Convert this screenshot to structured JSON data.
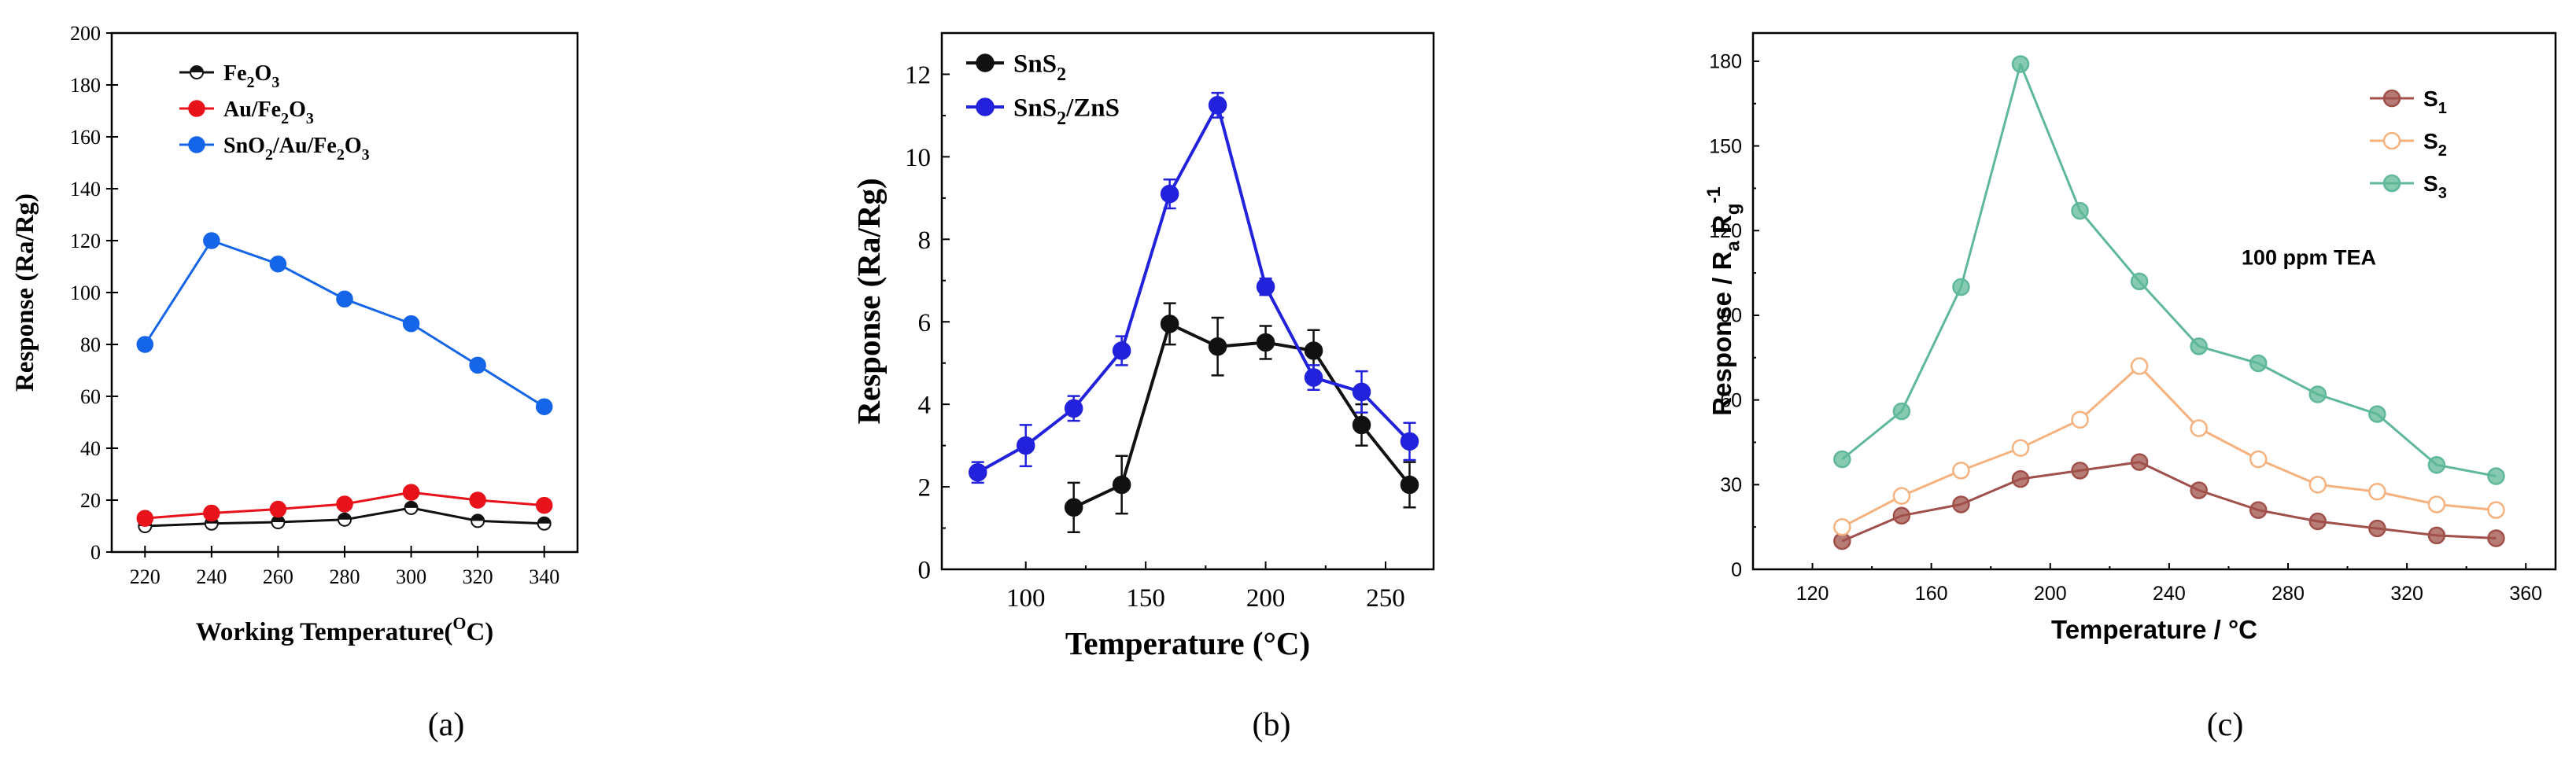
{
  "chart_data": [
    {
      "type": "line",
      "panel_label": "(a)",
      "title": "",
      "xlabel": "Working Temperature(°C)",
      "xlabel_main": "Working Temperature(",
      "xlabel_sup": "O",
      "xlabel_end": "C)",
      "ylabel": "Response (Ra/Rg)",
      "xlim": [
        210,
        350
      ],
      "ylim": [
        0,
        200
      ],
      "xticks": [
        220,
        240,
        260,
        280,
        300,
        320,
        340
      ],
      "yticks": [
        0,
        20,
        40,
        60,
        80,
        100,
        120,
        140,
        160,
        180,
        200
      ],
      "grid": false,
      "legend_position": "top-left",
      "x": [
        220,
        240,
        260,
        280,
        300,
        320,
        340
      ],
      "series": [
        {
          "name": "Fe2O3",
          "legend": [
            {
              "t": "Fe"
            },
            {
              "t": "2",
              "sub": true
            },
            {
              "t": "O"
            },
            {
              "t": "3",
              "sub": true
            }
          ],
          "color": "#111111",
          "marker": "half-open-circle",
          "values": [
            10,
            11,
            11.5,
            12.5,
            17,
            12,
            11
          ]
        },
        {
          "name": "Au/Fe2O3",
          "legend": [
            {
              "t": "Au/Fe"
            },
            {
              "t": "2",
              "sub": true
            },
            {
              "t": "O"
            },
            {
              "t": "3",
              "sub": true
            }
          ],
          "color": "#e8121b",
          "marker": "circle",
          "values": [
            13,
            15,
            16.5,
            18.5,
            23,
            20,
            18
          ]
        },
        {
          "name": "SnO2/Au/Fe2O3",
          "legend": [
            {
              "t": "SnO"
            },
            {
              "t": "2",
              "sub": true
            },
            {
              "t": "/Au/Fe"
            },
            {
              "t": "2",
              "sub": true
            },
            {
              "t": "O"
            },
            {
              "t": "3",
              "sub": true
            }
          ],
          "color": "#1565e8",
          "marker": "circle",
          "values": [
            80,
            120,
            111,
            97.5,
            88,
            72,
            56
          ]
        }
      ]
    },
    {
      "type": "line",
      "panel_label": "(b)",
      "title": "",
      "xlabel": "Temperature (°C)",
      "ylabel": "Response (Ra/Rg)",
      "xlim": [
        65,
        270
      ],
      "ylim": [
        0,
        13
      ],
      "xticks": [
        100,
        150,
        200,
        250
      ],
      "yticks": [
        0,
        2,
        4,
        6,
        8,
        10,
        12
      ],
      "grid": false,
      "legend_position": "top-left",
      "series": [
        {
          "name": "SnS2",
          "legend": [
            {
              "t": "SnS"
            },
            {
              "t": "2",
              "sub": true
            }
          ],
          "color": "#111111",
          "marker": "circle",
          "x": [
            120,
            140,
            160,
            180,
            200,
            220,
            240,
            260
          ],
          "values": [
            1.5,
            2.05,
            5.95,
            5.4,
            5.5,
            5.3,
            3.5,
            2.05
          ],
          "errors": [
            0.6,
            0.7,
            0.5,
            0.7,
            0.4,
            0.5,
            0.5,
            0.55
          ]
        },
        {
          "name": "SnS2/ZnS",
          "legend": [
            {
              "t": "SnS"
            },
            {
              "t": "2",
              "sub": true
            },
            {
              "t": "/ZnS"
            }
          ],
          "color": "#2222dd",
          "marker": "circle",
          "x": [
            80,
            100,
            120,
            140,
            160,
            180,
            200,
            220,
            240,
            260
          ],
          "values": [
            2.35,
            3.0,
            3.9,
            5.3,
            9.1,
            11.25,
            6.85,
            4.65,
            4.3,
            3.1
          ],
          "errors": [
            0.25,
            0.5,
            0.3,
            0.35,
            0.35,
            0.3,
            0.2,
            0.3,
            0.5,
            0.45
          ]
        }
      ]
    },
    {
      "type": "line",
      "panel_label": "(c)",
      "title": "",
      "xlabel": "Temperature / °C",
      "ylabel": "Response / Ra Rg-1",
      "ylabel_parts": [
        {
          "t": "Response / R"
        },
        {
          "t": "a",
          "sub": true
        },
        {
          "t": " R"
        },
        {
          "t": "g",
          "sub": true
        },
        {
          "t": "-1",
          "sup": true
        }
      ],
      "annotation": "100 ppm TEA",
      "xlim": [
        100,
        370
      ],
      "ylim": [
        0,
        190
      ],
      "xticks": [
        120,
        160,
        200,
        240,
        280,
        320,
        360
      ],
      "yticks": [
        0,
        30,
        60,
        90,
        120,
        150,
        180
      ],
      "grid": false,
      "legend_position": "top-right",
      "x": [
        130,
        150,
        170,
        190,
        210,
        230,
        250,
        270,
        290,
        310,
        330,
        350
      ],
      "series": [
        {
          "name": "S1",
          "legend": [
            {
              "t": "S"
            },
            {
              "t": "1",
              "sub": true
            }
          ],
          "color": "#a0504a",
          "marker": "circle-light",
          "values": [
            10,
            19,
            23,
            32,
            35,
            38,
            28,
            21,
            17,
            14.5,
            12,
            11
          ]
        },
        {
          "name": "S2",
          "legend": [
            {
              "t": "S"
            },
            {
              "t": "2",
              "sub": true
            }
          ],
          "color": "#f5b27e",
          "marker": "open-circle",
          "values": [
            15,
            26,
            35,
            43,
            53,
            72,
            50,
            39,
            30,
            27.5,
            23,
            21
          ]
        },
        {
          "name": "S3",
          "legend": [
            {
              "t": "S"
            },
            {
              "t": "3",
              "sub": true
            }
          ],
          "color": "#5fb898",
          "marker": "circle-light",
          "values": [
            39,
            56,
            100,
            179,
            127,
            102,
            79,
            73,
            62,
            55,
            37,
            33
          ]
        }
      ]
    }
  ]
}
